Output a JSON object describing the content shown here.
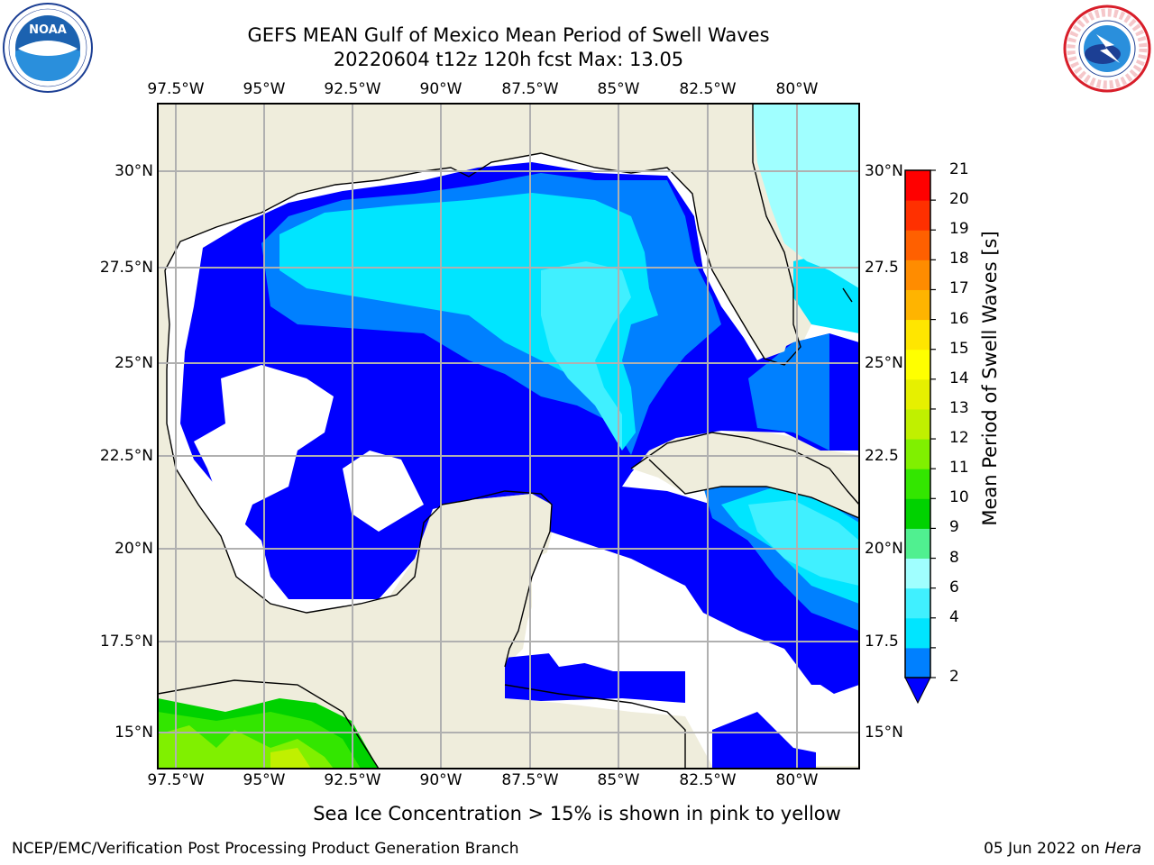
{
  "header": {
    "title_line1": "GEFS MEAN Gulf of Mexico Mean Period of Swell Waves",
    "title_line2": "20220604 t12z 120h fcst   Max: 13.05"
  },
  "logos": {
    "left": "NOAA",
    "left_ring_text": "NATIONAL OCEANIC AND ATMOSPHERIC ADMINISTRATION · U.S. DEPARTMENT OF COMMERCE",
    "right_ring_text": "NATIONAL WEATHER SERVICE"
  },
  "map": {
    "lon_labels": [
      "97.5°W",
      "95°W",
      "92.5°W",
      "90°W",
      "87.5°W",
      "85°W",
      "82.5°W",
      "80°W"
    ],
    "lat_labels_left": [
      "30°N",
      "27.5°N",
      "25°N",
      "22.5°N",
      "20°N",
      "17.5°N",
      "15°N"
    ],
    "lat_labels_right": [
      "30°N",
      "27.5",
      "25°N",
      "22.5",
      "20°N",
      "17.5",
      "15°N"
    ],
    "colors": {
      "land": "#efeddc",
      "ocean_missing": "#ffffff",
      "grid": "#b0b0b0",
      "coast": "#000000"
    }
  },
  "colorbar": {
    "title": "Mean Period of Swell Waves [s]",
    "tick_labels": [
      "21",
      "20",
      "19",
      "18",
      "17",
      "16",
      "15",
      "14",
      "13",
      "12",
      "11",
      "10",
      "9",
      "8",
      "6",
      "4",
      "2"
    ],
    "bins": [
      {
        "from": 2,
        "to": 4,
        "color": "#0080ff"
      },
      {
        "from": 4,
        "to": 6,
        "color": "#00e5ff"
      },
      {
        "from": 6,
        "to": 8,
        "color": "#40f0ff"
      },
      {
        "from": 8,
        "to": 9,
        "color": "#a0ffff"
      },
      {
        "from": 9,
        "to": 10,
        "color": "#50f090"
      },
      {
        "from": 10,
        "to": 11,
        "color": "#00d200"
      },
      {
        "from": 11,
        "to": 12,
        "color": "#33e600"
      },
      {
        "from": 12,
        "to": 13,
        "color": "#80f000"
      },
      {
        "from": 13,
        "to": 14,
        "color": "#c0f000"
      },
      {
        "from": 14,
        "to": 15,
        "color": "#e6f000"
      },
      {
        "from": 15,
        "to": 16,
        "color": "#ffff00"
      },
      {
        "from": 16,
        "to": 17,
        "color": "#ffe600"
      },
      {
        "from": 17,
        "to": 18,
        "color": "#ffb400"
      },
      {
        "from": 18,
        "to": 19,
        "color": "#ff8c00"
      },
      {
        "from": 19,
        "to": 20,
        "color": "#ff6000"
      },
      {
        "from": 20,
        "to": 21,
        "color": "#ff3000"
      },
      {
        "from": 21,
        "to": 22,
        "color": "#ff0000"
      }
    ],
    "under_color": "#0000ff"
  },
  "footer": {
    "subtitle": "Sea Ice Concentration > 15% is shown in pink to yellow",
    "left": "NCEP/EMC/Verification Post Processing Product Generation Branch",
    "date": "05 Jun 2022 on ",
    "machine": "Hera"
  }
}
